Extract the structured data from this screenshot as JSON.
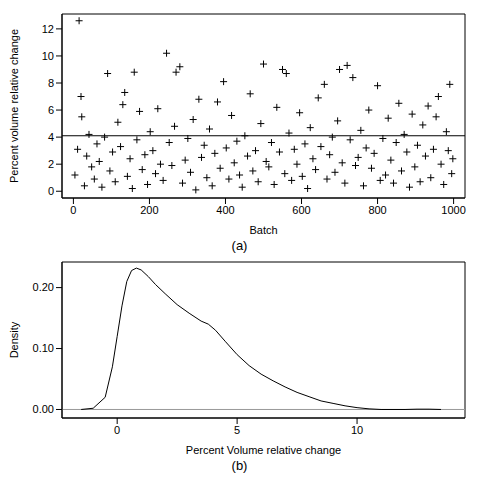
{
  "chart_data": [
    {
      "type": "scatter",
      "caption": "(a)",
      "x_label": "Batch",
      "y_label": "Percent volume relative change",
      "marker": "plus",
      "color": "#000000",
      "grid": false,
      "reference_line": 4.1,
      "xlim": [
        -30,
        1030
      ],
      "xticks": [
        0,
        200,
        400,
        600,
        800,
        1000
      ],
      "ylim": [
        -0.5,
        13.1
      ],
      "yticks": [
        0,
        2,
        4,
        6,
        8,
        10,
        12
      ],
      "x": [
        4,
        11,
        15,
        20,
        22,
        29,
        35,
        41,
        48,
        55,
        62,
        68,
        75,
        82,
        90,
        96,
        103,
        110,
        117,
        124,
        130,
        135,
        142,
        149,
        155,
        160,
        167,
        174,
        181,
        188,
        195,
        202,
        209,
        216,
        222,
        229,
        236,
        245,
        252,
        259,
        266,
        270,
        280,
        287,
        294,
        301,
        308,
        315,
        322,
        330,
        337,
        344,
        351,
        358,
        365,
        372,
        379,
        386,
        395,
        402,
        409,
        416,
        423,
        430,
        437,
        444,
        451,
        458,
        465,
        472,
        479,
        486,
        493,
        500,
        507,
        514,
        521,
        528,
        535,
        542,
        550,
        556,
        560,
        567,
        574,
        581,
        588,
        595,
        602,
        609,
        616,
        623,
        630,
        637,
        644,
        651,
        660,
        667,
        674,
        681,
        688,
        695,
        700,
        707,
        714,
        720,
        728,
        735,
        742,
        749,
        756,
        763,
        770,
        777,
        784,
        791,
        800,
        807,
        814,
        821,
        828,
        835,
        842,
        849,
        856,
        863,
        870,
        877,
        884,
        891,
        898,
        905,
        912,
        919,
        926,
        933,
        940,
        947,
        954,
        960,
        967,
        974,
        981,
        986,
        990,
        995,
        998
      ],
      "values": [
        1.2,
        3.1,
        12.6,
        7.0,
        5.5,
        0.4,
        2.6,
        4.2,
        1.8,
        0.9,
        3.5,
        2.2,
        0.3,
        4.0,
        8.7,
        1.5,
        2.9,
        0.7,
        5.1,
        3.3,
        6.4,
        7.3,
        1.1,
        2.4,
        0.2,
        8.8,
        3.8,
        5.9,
        1.6,
        2.7,
        0.5,
        4.4,
        3.0,
        1.3,
        6.1,
        2.0,
        0.8,
        10.2,
        3.6,
        1.9,
        4.8,
        8.8,
        9.2,
        0.6,
        2.3,
        3.9,
        1.4,
        5.3,
        0.1,
        6.8,
        2.5,
        3.4,
        1.0,
        4.6,
        0.4,
        2.8,
        6.6,
        1.7,
        8.1,
        3.2,
        0.9,
        5.6,
        2.1,
        3.7,
        1.2,
        0.3,
        4.1,
        2.6,
        7.2,
        1.5,
        3.0,
        0.7,
        5.0,
        9.4,
        2.2,
        1.8,
        3.6,
        0.5,
        6.2,
        2.9,
        9.0,
        1.3,
        8.7,
        4.3,
        0.8,
        3.1,
        2.0,
        5.8,
        1.1,
        3.5,
        0.2,
        4.7,
        2.4,
        1.6,
        6.9,
        3.3,
        7.9,
        0.9,
        2.7,
        4.0,
        1.4,
        5.2,
        9.0,
        2.1,
        0.6,
        9.3,
        3.8,
        8.4,
        1.9,
        2.5,
        4.5,
        0.4,
        3.2,
        6.0,
        1.7,
        2.8,
        7.8,
        0.8,
        3.9,
        1.2,
        5.4,
        2.3,
        0.6,
        3.6,
        6.5,
        1.5,
        4.2,
        2.9,
        0.3,
        5.7,
        1.8,
        3.4,
        0.7,
        4.9,
        2.6,
        6.3,
        1.0,
        3.1,
        5.5,
        7.0,
        2.0,
        0.5,
        4.4,
        3.0,
        7.9,
        1.3,
        2.4
      ]
    },
    {
      "type": "line",
      "caption": "(b)",
      "x_label": "Percent Volume relative change",
      "y_label": "Density",
      "color": "#000000",
      "grid": false,
      "reference_line": 0,
      "xlim": [
        -2.3,
        14.5
      ],
      "xticks": [
        0,
        5,
        10
      ],
      "ylim": [
        -0.014,
        0.242
      ],
      "yticks": [
        {
          "value": 0,
          "label": "0.00"
        },
        {
          "value": 0.1,
          "label": "0.10"
        },
        {
          "value": 0.2,
          "label": "0.20"
        }
      ],
      "x": [
        -1.5,
        -1.0,
        -0.5,
        -0.2,
        0,
        0.2,
        0.4,
        0.6,
        0.8,
        1.0,
        1.3,
        1.6,
        2.0,
        2.5,
        3.0,
        3.5,
        3.8,
        4.1,
        4.5,
        5.0,
        5.5,
        6.0,
        6.5,
        7.0,
        7.5,
        8.0,
        8.5,
        9.0,
        9.5,
        10.0,
        10.5,
        11.0,
        12.0,
        12.5,
        13.0,
        13.5
      ],
      "values": [
        0,
        0.002,
        0.02,
        0.07,
        0.12,
        0.17,
        0.21,
        0.228,
        0.232,
        0.229,
        0.218,
        0.205,
        0.19,
        0.172,
        0.158,
        0.145,
        0.14,
        0.13,
        0.112,
        0.09,
        0.072,
        0.058,
        0.047,
        0.037,
        0.028,
        0.021,
        0.014,
        0.01,
        0.006,
        0.003,
        0.001,
        0,
        0,
        0.0005,
        0.0005,
        0
      ]
    }
  ]
}
